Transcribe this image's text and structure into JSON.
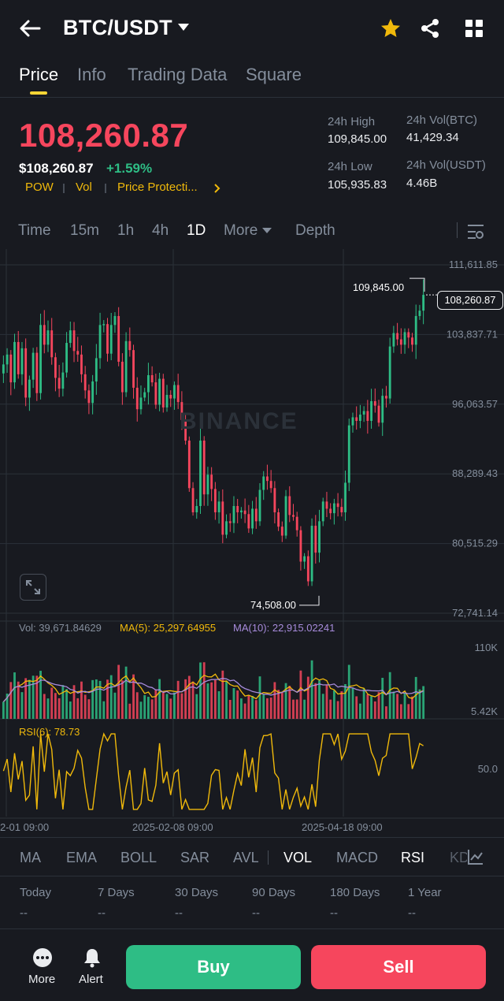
{
  "header": {
    "pair": "BTC/USDT",
    "icons": [
      "back-arrow-icon",
      "caret-down-icon",
      "star-icon",
      "share-icon",
      "grid-icon"
    ],
    "star_color": "#f0b90b"
  },
  "tabs": [
    {
      "label": "Price",
      "active": true
    },
    {
      "label": "Info"
    },
    {
      "label": "Trading Data"
    },
    {
      "label": "Square"
    }
  ],
  "price": {
    "last": "108,260.87",
    "fiat": "$108,260.87",
    "change": "+1.59%",
    "tags": [
      "POW",
      "Vol",
      "Price Protecti..."
    ],
    "high_label": "24h High",
    "high": "109,845.00",
    "low_label": "24h Low",
    "low": "105,935.83",
    "vol_btc_label": "24h Vol(BTC)",
    "vol_btc": "41,429.34",
    "vol_usdt_label": "24h Vol(USDT)",
    "vol_usdt": "4.46B"
  },
  "intervals": [
    {
      "label": "Time"
    },
    {
      "label": "15m"
    },
    {
      "label": "1h"
    },
    {
      "label": "4h"
    },
    {
      "label": "1D",
      "active": true
    },
    {
      "label": "More"
    },
    {
      "label": "Depth"
    }
  ],
  "chart": {
    "watermark": "BINANCE",
    "y_ticks": [
      "111,611.85",
      "103,837.71",
      "96,063.57",
      "88,289.43",
      "80,515.29",
      "72,741.14"
    ],
    "last_price_tag": "108,260.87",
    "high_marker": "109,845.00",
    "low_marker": "74,508.00",
    "vol_ticks": [
      "110K",
      "5.42K"
    ],
    "vol_header": {
      "vol": "Vol: 39,671.84629",
      "ma5": "MA(5): 25,297.64955",
      "ma10": "MA(10): 22,915.02241"
    },
    "rsi_header": "RSI(6): 78.73",
    "rsi_tick": "50.0",
    "dates": [
      "2-01 09:00",
      "2025-02-08 09:00",
      "2025-04-18 09:00"
    ],
    "colors": {
      "up": "#2ebd85",
      "down": "#f6465d",
      "ma5": "#f0b90b",
      "ma10": "#a78bdb",
      "rsi": "#f0b90b"
    }
  },
  "chart_data": {
    "type": "candlestick",
    "interval": "1D",
    "y_range": [
      72741.14,
      111611.85
    ],
    "ohlc_close_trace_approx": [
      100500,
      101600,
      98500,
      103000,
      99400,
      102300,
      96800,
      98800,
      101800,
      97300,
      104900,
      102700,
      104300,
      101300,
      99000,
      97800,
      99600,
      102900,
      104300,
      102000,
      101600,
      99400,
      97600,
      96200,
      98600,
      101200,
      104900,
      105000,
      101700,
      104900,
      105900,
      100800,
      97400,
      103100,
      102100,
      97900,
      95500,
      96800,
      97400,
      99300,
      98500,
      96000,
      98900,
      95700,
      97100,
      96700,
      98200,
      96300,
      94300,
      92000,
      86700,
      84000,
      84700,
      92000,
      86000,
      88200,
      86600,
      84000,
      85200,
      81500,
      83000,
      82800,
      84700,
      84000,
      84200,
      83800,
      82200,
      84400,
      83000,
      86500,
      88000,
      87500,
      86700,
      84000,
      82400,
      81400,
      85800,
      83700,
      83500,
      82000,
      78500,
      79100,
      76300,
      82500,
      79500,
      83000,
      85200,
      84400,
      83900,
      85000,
      84600,
      84000,
      87300,
      93700,
      94600,
      94200,
      94900,
      95300,
      94200,
      96400,
      95900,
      94000,
      97000,
      96700,
      102500,
      104000,
      103300,
      102700,
      104100,
      103500,
      102700,
      105900,
      106500,
      108260.87
    ],
    "high_marker": 109845.0,
    "low_marker": 74508.0,
    "last": 108260.87,
    "volume": {
      "last": 39671.84629,
      "ma5": 25297.64955,
      "ma10": 22915.02241,
      "y_ticks": [
        "110K",
        "5.42K"
      ]
    },
    "rsi": {
      "period": 6,
      "last": 78.73,
      "mid": 50.0
    },
    "x_ticks": [
      "2-01 09:00",
      "2025-02-08 09:00",
      "2025-04-18 09:00"
    ]
  },
  "indicators": [
    {
      "label": "MA"
    },
    {
      "label": "EMA"
    },
    {
      "label": "BOLL"
    },
    {
      "label": "SAR"
    },
    {
      "label": "AVL"
    },
    {
      "label": "VOL",
      "active": true
    },
    {
      "label": "MACD"
    },
    {
      "label": "RSI",
      "active": true
    },
    {
      "label": "KD"
    }
  ],
  "performance": [
    {
      "label": "Today",
      "value": "--"
    },
    {
      "label": "7 Days",
      "value": "--"
    },
    {
      "label": "30 Days",
      "value": "--"
    },
    {
      "label": "90 Days",
      "value": "--"
    },
    {
      "label": "180 Days",
      "value": "--"
    },
    {
      "label": "1 Year",
      "value": "--"
    }
  ],
  "bottom": {
    "more": "More",
    "alert": "Alert",
    "buy": "Buy",
    "sell": "Sell"
  }
}
